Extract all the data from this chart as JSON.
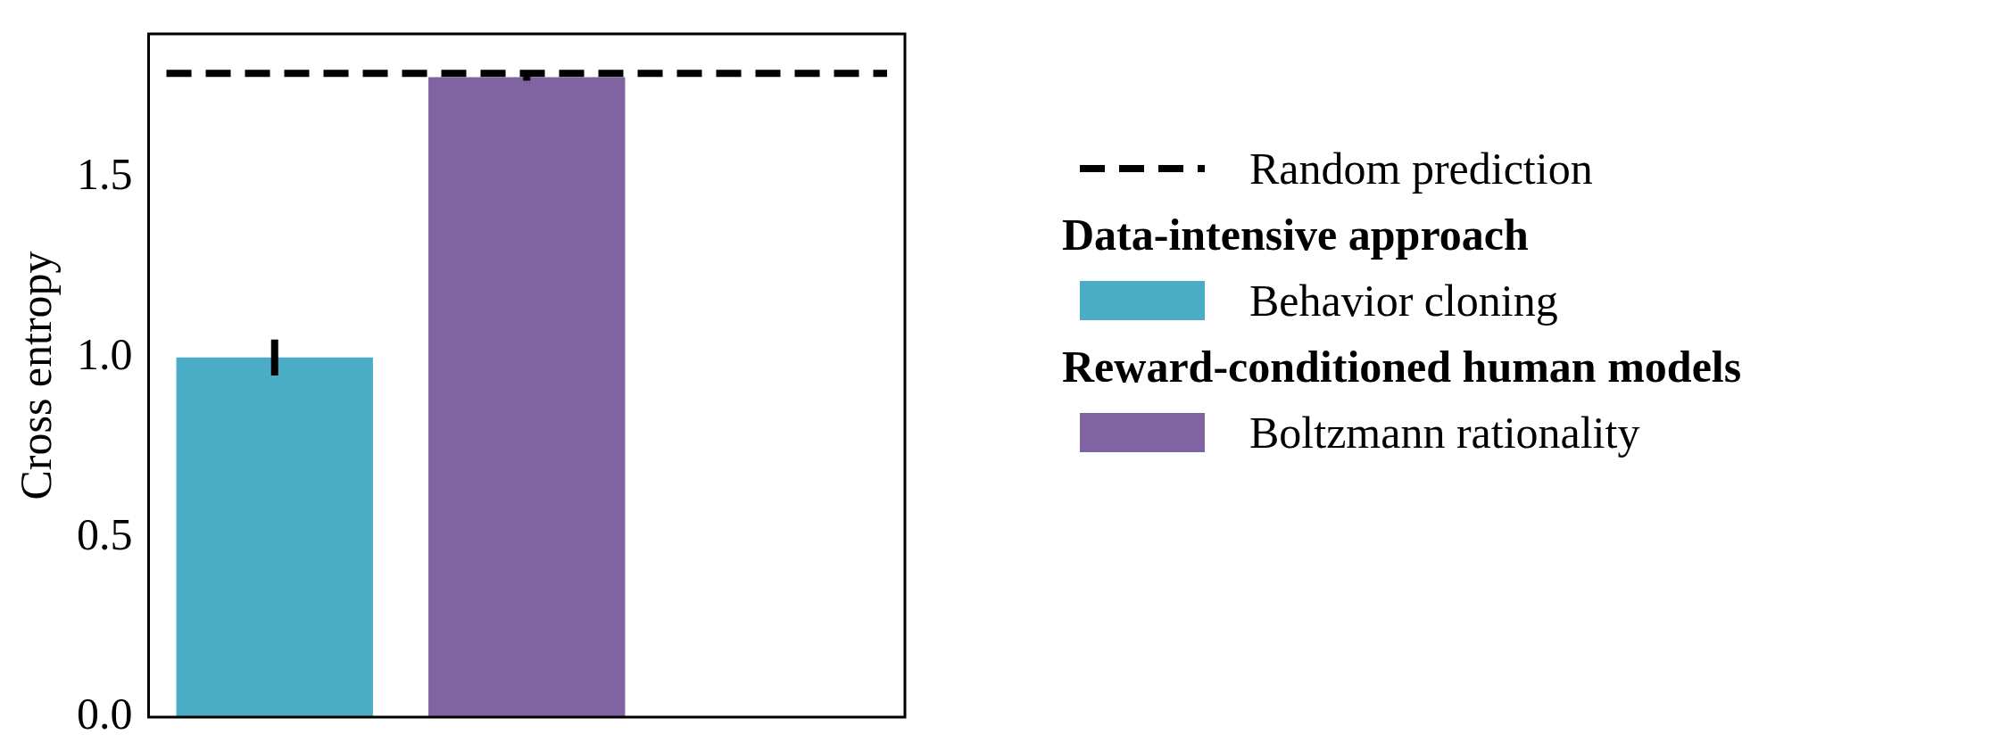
{
  "chart_data": {
    "type": "bar",
    "ylabel": "Cross entropy",
    "categories": [
      null,
      null,
      null
    ],
    "series": [
      {
        "name": "Behavior cloning",
        "color": "#4bacc6",
        "values": [
          1.0,
          null,
          null
        ],
        "errors": [
          0.05,
          null,
          null
        ]
      },
      {
        "name": "Boltzmann rationality",
        "color": "#8064a2",
        "values": [
          null,
          1.78,
          null
        ],
        "errors": [
          null,
          0.01,
          null
        ]
      }
    ],
    "ylim": [
      0,
      1.9
    ],
    "yticks": [
      {
        "value": 0,
        "label": "0.0"
      },
      {
        "value": 0.5,
        "label": "0.5"
      },
      {
        "value": 1,
        "label": "1.0"
      },
      {
        "value": 1.5,
        "label": "1.5"
      }
    ],
    "ref_lines": [
      {
        "axis": "y",
        "value": 1.79,
        "label": "Random prediction",
        "color": "#000000",
        "line_style": "dashed"
      }
    ],
    "annotations": [
      "Data-intensive approach",
      "Reward-conditioned human models"
    ],
    "legend": "right",
    "grid": false
  }
}
